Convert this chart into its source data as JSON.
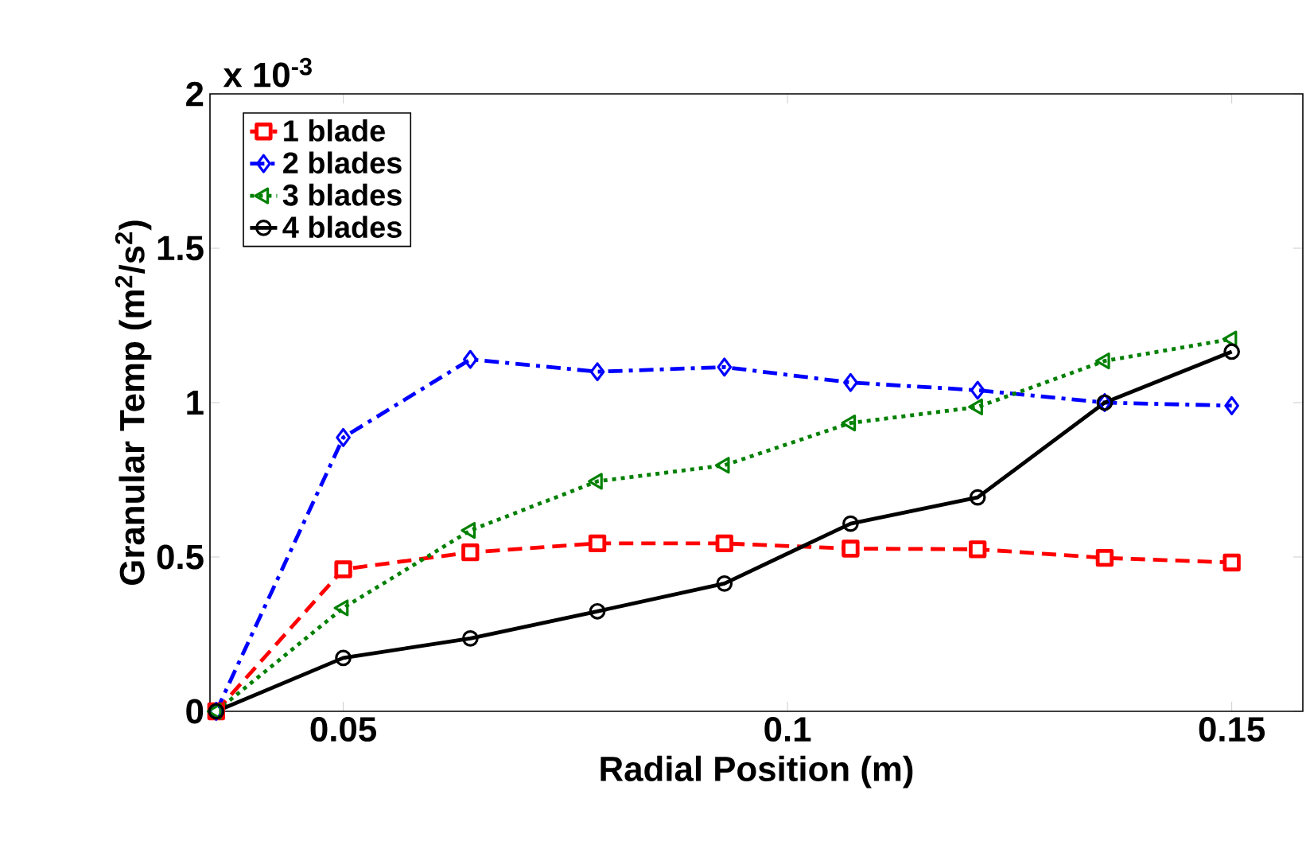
{
  "chart_data": {
    "type": "line",
    "xlabel": "Radial Position (m)",
    "ylabel": "Granular Temp (m$^{2}$/s$^{2}$)",
    "x": [
      0.0357,
      0.05,
      0.0643,
      0.0786,
      0.0929,
      0.1071,
      0.1214,
      0.1357,
      0.15
    ],
    "xlim": [
      0.035,
      0.158
    ],
    "xticks": [
      0.05,
      0.1,
      0.15
    ],
    "ylim": [
      0,
      2
    ],
    "yticks": [
      0,
      0.5,
      1,
      1.5,
      2
    ],
    "annotations": [
      "x 10$^{-3}$"
    ],
    "legend": "top left",
    "grid": false,
    "series": [
      {
        "name": "1 blade",
        "color": "#ff0000",
        "marker": "square",
        "line_style": "dashed",
        "values": [
          0,
          0.46,
          0.515,
          0.544,
          0.544,
          0.527,
          0.525,
          0.497,
          0.482
        ]
      },
      {
        "name": "2 blades",
        "color": "#0000ff",
        "marker": "diamond",
        "line_style": "dashdot",
        "values": [
          0,
          0.887,
          1.14,
          1.1,
          1.115,
          1.065,
          1.04,
          1.0,
          0.99
        ]
      },
      {
        "name": "3 blades",
        "color": "#008000",
        "marker": "triangle",
        "line_style": "dotted",
        "values": [
          0,
          0.335,
          0.586,
          0.745,
          0.797,
          0.934,
          0.986,
          1.135,
          1.206
        ]
      },
      {
        "name": "4 blades",
        "color": "#000000",
        "marker": "circle",
        "line_style": "solid",
        "values": [
          0,
          0.173,
          0.236,
          0.324,
          0.414,
          0.608,
          0.693,
          1.0,
          1.165
        ]
      }
    ]
  }
}
